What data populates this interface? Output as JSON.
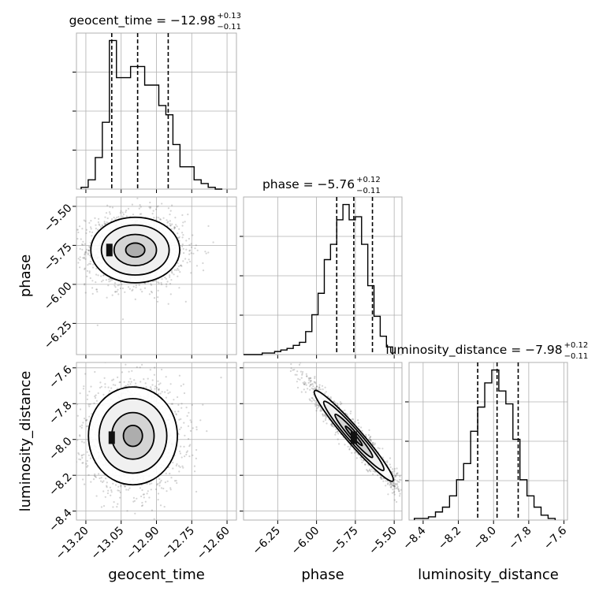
{
  "figure": {
    "kind": "corner plot",
    "colors": {
      "line": "#000000",
      "grid": "#b0b0b0",
      "points": "#555555",
      "frame": "#b0b0b0"
    }
  },
  "chart_data": [
    {
      "type": "histogram",
      "panel": "geocent_time",
      "title_main": "geocent_time = −12.98",
      "title_sup": "+0.13",
      "title_sub": "−0.11",
      "quantile_lines": [
        -13.09,
        -12.98,
        -12.85
      ],
      "bin_edges": [
        -13.22,
        -13.19,
        -13.16,
        -13.13,
        -13.1,
        -13.07,
        -13.04,
        -13.01,
        -12.98,
        -12.95,
        -12.92,
        -12.89,
        -12.86,
        -12.83,
        -12.8,
        -12.77,
        -12.74,
        -12.71,
        -12.68,
        -12.65,
        -12.62
      ],
      "heights": [
        1,
        5,
        17,
        36,
        80,
        60,
        60,
        66,
        66,
        56,
        56,
        45,
        40,
        24,
        12,
        12,
        5,
        3,
        1,
        0
      ],
      "xlim": [
        -13.24,
        -12.56
      ],
      "xticks": [
        -13.2,
        -13.05,
        -12.9,
        -12.75,
        -12.6
      ],
      "xticklabels": [
        "−13.20",
        "−13.05",
        "−12.90",
        "−12.75",
        "−12.60"
      ],
      "xlabel": "geocent_time"
    },
    {
      "type": "histogram",
      "panel": "phase",
      "title_main": "phase = −5.76",
      "title_sup": "+0.12",
      "title_sub": "−0.11",
      "quantile_lines": [
        -5.87,
        -5.76,
        -5.64
      ],
      "bin_edges": [
        -6.47,
        -6.43,
        -6.39,
        -6.35,
        -6.31,
        -6.27,
        -6.23,
        -6.19,
        -6.15,
        -6.11,
        -6.07,
        -6.03,
        -5.99,
        -5.95,
        -5.91,
        -5.87,
        -5.83,
        -5.79,
        -5.75,
        -5.71,
        -5.67,
        -5.63,
        -5.59,
        -5.55,
        -5.51
      ],
      "heights": [
        0,
        0,
        0,
        1,
        1,
        2,
        3,
        4,
        6,
        8,
        15,
        26,
        40,
        62,
        72,
        88,
        98,
        88,
        90,
        72,
        45,
        25,
        12,
        5
      ],
      "xlim": [
        -6.47,
        -5.45
      ],
      "xticks": [
        -6.25,
        -6.0,
        -5.75,
        -5.5
      ],
      "xticklabels": [
        "−6.25",
        "−6.00",
        "−5.75",
        "−5.50"
      ],
      "xlabel": "phase"
    },
    {
      "type": "histogram",
      "panel": "luminosity_distance",
      "title_main": "luminosity_distance = −7.98",
      "title_sup": "+0.12",
      "title_sub": "−0.11",
      "quantile_lines": [
        -8.09,
        -7.98,
        -7.86
      ],
      "bin_edges": [
        -8.45,
        -8.41,
        -8.37,
        -8.33,
        -8.29,
        -8.25,
        -8.21,
        -8.17,
        -8.13,
        -8.09,
        -8.05,
        -8.01,
        -7.97,
        -7.93,
        -7.89,
        -7.85,
        -7.81,
        -7.77,
        -7.73,
        -7.69,
        -7.65
      ],
      "heights": [
        1,
        1,
        2,
        5,
        8,
        15,
        25,
        35,
        55,
        70,
        85,
        93,
        80,
        72,
        50,
        25,
        15,
        8,
        3,
        1
      ],
      "xlim": [
        -8.48,
        -7.58
      ],
      "xticks": [
        -8.4,
        -8.2,
        -8.0,
        -7.8,
        -7.6
      ],
      "xticklabels": [
        "−8.4",
        "−8.2",
        "−8.0",
        "−7.8",
        "−7.6"
      ],
      "xlabel": "luminosity_distance"
    },
    {
      "type": "scatter-contour",
      "panel": "geocent_time-phase",
      "x_param": "geocent_time",
      "y_param": "phase",
      "center": [
        -12.99,
        -5.78
      ],
      "sigma": [
        0.09,
        0.1
      ],
      "corr": 0.0,
      "mode": [
        -13.1,
        -5.78
      ],
      "xlim": [
        -13.24,
        -12.56
      ],
      "ylim": [
        -6.45,
        -5.44
      ],
      "yticks": [
        -5.5,
        -5.75,
        -6.0,
        -6.25
      ],
      "yticklabels": [
        "−5.50",
        "−5.75",
        "−6.00",
        "−6.25"
      ],
      "ylabel": "phase"
    },
    {
      "type": "scatter-contour",
      "panel": "geocent_time-luminosity_distance",
      "x_param": "geocent_time",
      "y_param": "luminosity_distance",
      "center": [
        -13.0,
        -7.98
      ],
      "sigma": [
        0.09,
        0.13
      ],
      "corr": 0.0,
      "mode": [
        -13.09,
        -7.99
      ],
      "xlim": [
        -13.24,
        -12.56
      ],
      "ylim": [
        -8.45,
        -7.57
      ],
      "yticks": [
        -7.6,
        -7.8,
        -8.0,
        -8.2,
        -8.4
      ],
      "yticklabels": [
        "−7.6",
        "−7.8",
        "−8.0",
        "−8.2",
        "−8.4"
      ],
      "ylabel": "luminosity_distance"
    },
    {
      "type": "scatter-contour",
      "panel": "phase-luminosity_distance",
      "x_param": "phase",
      "y_param": "luminosity_distance",
      "center": [
        -5.76,
        -7.98
      ],
      "sigma": [
        0.12,
        0.12
      ],
      "corr": -0.96,
      "mode": [
        -5.76,
        -7.99
      ],
      "xlim": [
        -6.47,
        -5.45
      ],
      "ylim": [
        -8.45,
        -7.57
      ]
    }
  ]
}
